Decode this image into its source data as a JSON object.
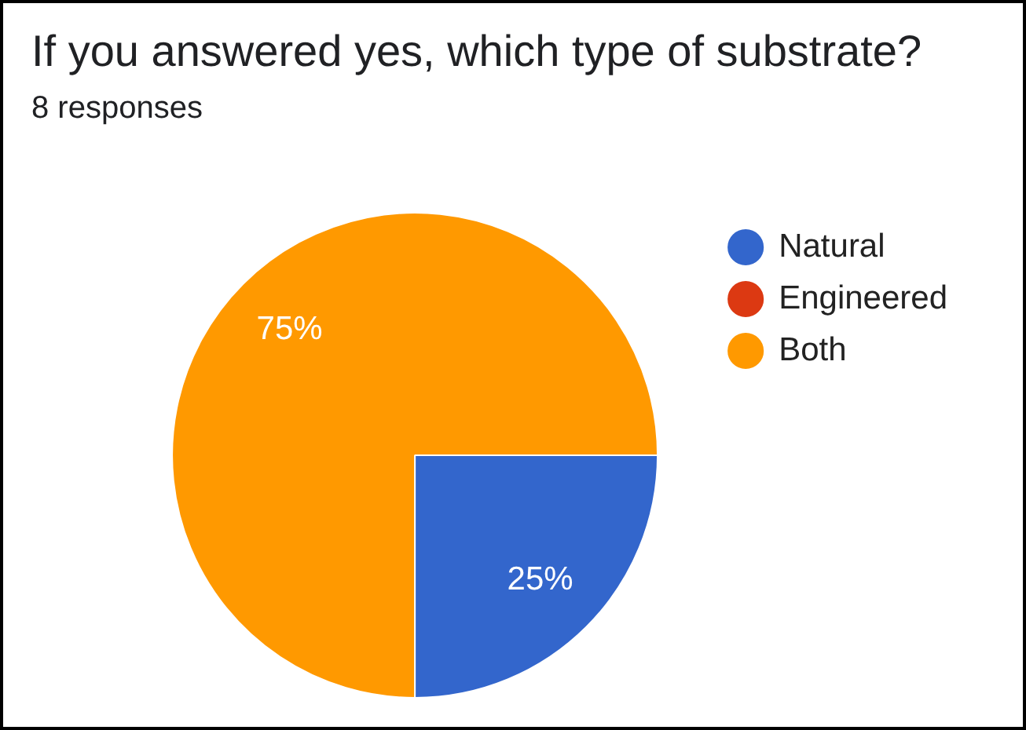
{
  "chart_data": {
    "type": "pie",
    "title": "If you answered yes, which type of substrate?",
    "subtitle": "8 responses",
    "categories": [
      "Natural",
      "Engineered",
      "Both"
    ],
    "values": [
      25,
      0,
      75
    ],
    "colors": [
      "#3366cc",
      "#dc3912",
      "#ff9900"
    ],
    "value_labels": [
      "25%",
      null,
      "75%"
    ],
    "legend": "top right"
  }
}
